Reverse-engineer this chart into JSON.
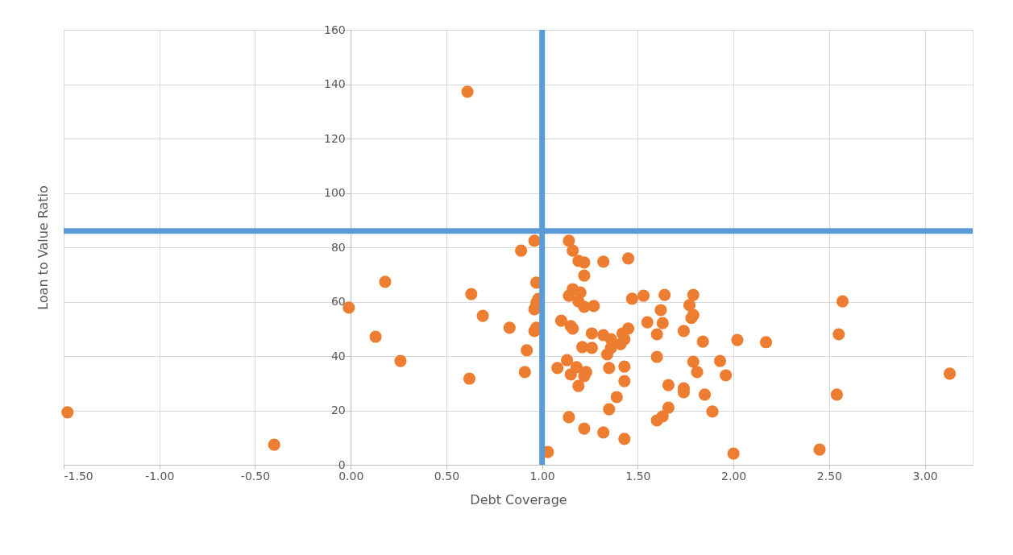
{
  "chart_data": {
    "type": "scatter",
    "xlabel": "Debt Coverage",
    "ylabel": "Loan to Value Ratio",
    "x": [
      -1.48,
      -0.4,
      -0.01,
      0.13,
      0.18,
      0.26,
      0.61,
      0.63,
      0.62,
      0.69,
      0.83,
      0.89,
      0.92,
      0.91,
      0.96,
      0.97,
      0.96,
      0.97,
      0.98,
      0.96,
      0.97,
      1.14,
      1.16,
      1.19,
      1.22,
      1.32,
      1.45,
      1.22,
      1.16,
      1.14,
      1.2,
      1.19,
      1.22,
      1.27,
      1.47,
      1.53,
      1.1,
      1.15,
      1.16,
      1.26,
      1.32,
      1.36,
      1.42,
      1.45,
      1.43,
      1.41,
      1.36,
      1.34,
      1.21,
      1.26,
      1.13,
      1.18,
      1.08,
      1.15,
      1.23,
      1.22,
      1.19,
      1.35,
      1.43,
      1.43,
      1.39,
      1.35,
      1.14,
      1.22,
      1.32,
      1.43,
      1.03,
      1.64,
      1.79,
      1.77,
      1.79,
      1.78,
      1.62,
      1.55,
      1.63,
      1.6,
      1.74,
      1.84,
      2.02,
      2.17,
      1.6,
      1.79,
      1.93,
      1.81,
      1.96,
      1.66,
      1.74,
      1.74,
      1.85,
      1.66,
      1.63,
      1.6,
      1.89,
      2.0,
      2.45,
      2.57,
      2.55,
      2.54,
      3.13
    ],
    "series": [
      {
        "color": "#ed7d31",
        "values": [
          19.3,
          7.4,
          57.8,
          47.1,
          67.3,
          38.2,
          137.2,
          62.8,
          31.7,
          54.8,
          50.4,
          78.8,
          42.1,
          34.1,
          82.4,
          67.0,
          57.2,
          59.5,
          61.0,
          49.2,
          50.4,
          82.4,
          78.8,
          75.0,
          74.4,
          74.7,
          75.9,
          69.6,
          64.6,
          62.2,
          63.4,
          60.1,
          58.1,
          58.4,
          61.1,
          62.2,
          53.0,
          51.0,
          50.1,
          48.3,
          47.7,
          46.2,
          48.3,
          50.1,
          46.2,
          44.4,
          43.0,
          40.6,
          43.3,
          43.0,
          38.5,
          35.9,
          35.6,
          33.2,
          34.1,
          32.6,
          29.0,
          35.6,
          36.1,
          30.8,
          24.9,
          20.4,
          17.5,
          13.3,
          11.9,
          9.5,
          4.7,
          62.5,
          62.5,
          58.7,
          55.1,
          54.0,
          56.9,
          52.4,
          52.1,
          48.0,
          49.2,
          45.3,
          45.9,
          45.1,
          39.7,
          37.9,
          38.2,
          34.1,
          32.9,
          29.3,
          28.1,
          26.7,
          25.8,
          21.0,
          17.8,
          16.3,
          19.6,
          4.1,
          5.6,
          60.1,
          48.0,
          25.8,
          33.5
        ]
      }
    ],
    "xlim": [
      -1.5,
      3.25
    ],
    "ylim": [
      0,
      160
    ],
    "xticks": [
      {
        "value": -1.5,
        "label": "-1.50"
      },
      {
        "value": -1,
        "label": "-1.00"
      },
      {
        "value": -0.5,
        "label": "-0.50"
      },
      {
        "value": 0,
        "label": "0.00"
      },
      {
        "value": 0.5,
        "label": "0.50"
      },
      {
        "value": 1,
        "label": "1.00"
      },
      {
        "value": 1.5,
        "label": "1.50"
      },
      {
        "value": 2,
        "label": "2.00"
      },
      {
        "value": 2.5,
        "label": "2.50"
      },
      {
        "value": 3,
        "label": "3.00"
      }
    ],
    "yticks": [
      0,
      20,
      40,
      60,
      80,
      100,
      120,
      140,
      160
    ],
    "ref_lines": [
      {
        "axis": "x",
        "value": 1.0,
        "color": "#5b9bd5"
      },
      {
        "axis": "y",
        "value": 86,
        "color": "#5b9bd5"
      }
    ],
    "grid": true,
    "marker": "circle"
  }
}
